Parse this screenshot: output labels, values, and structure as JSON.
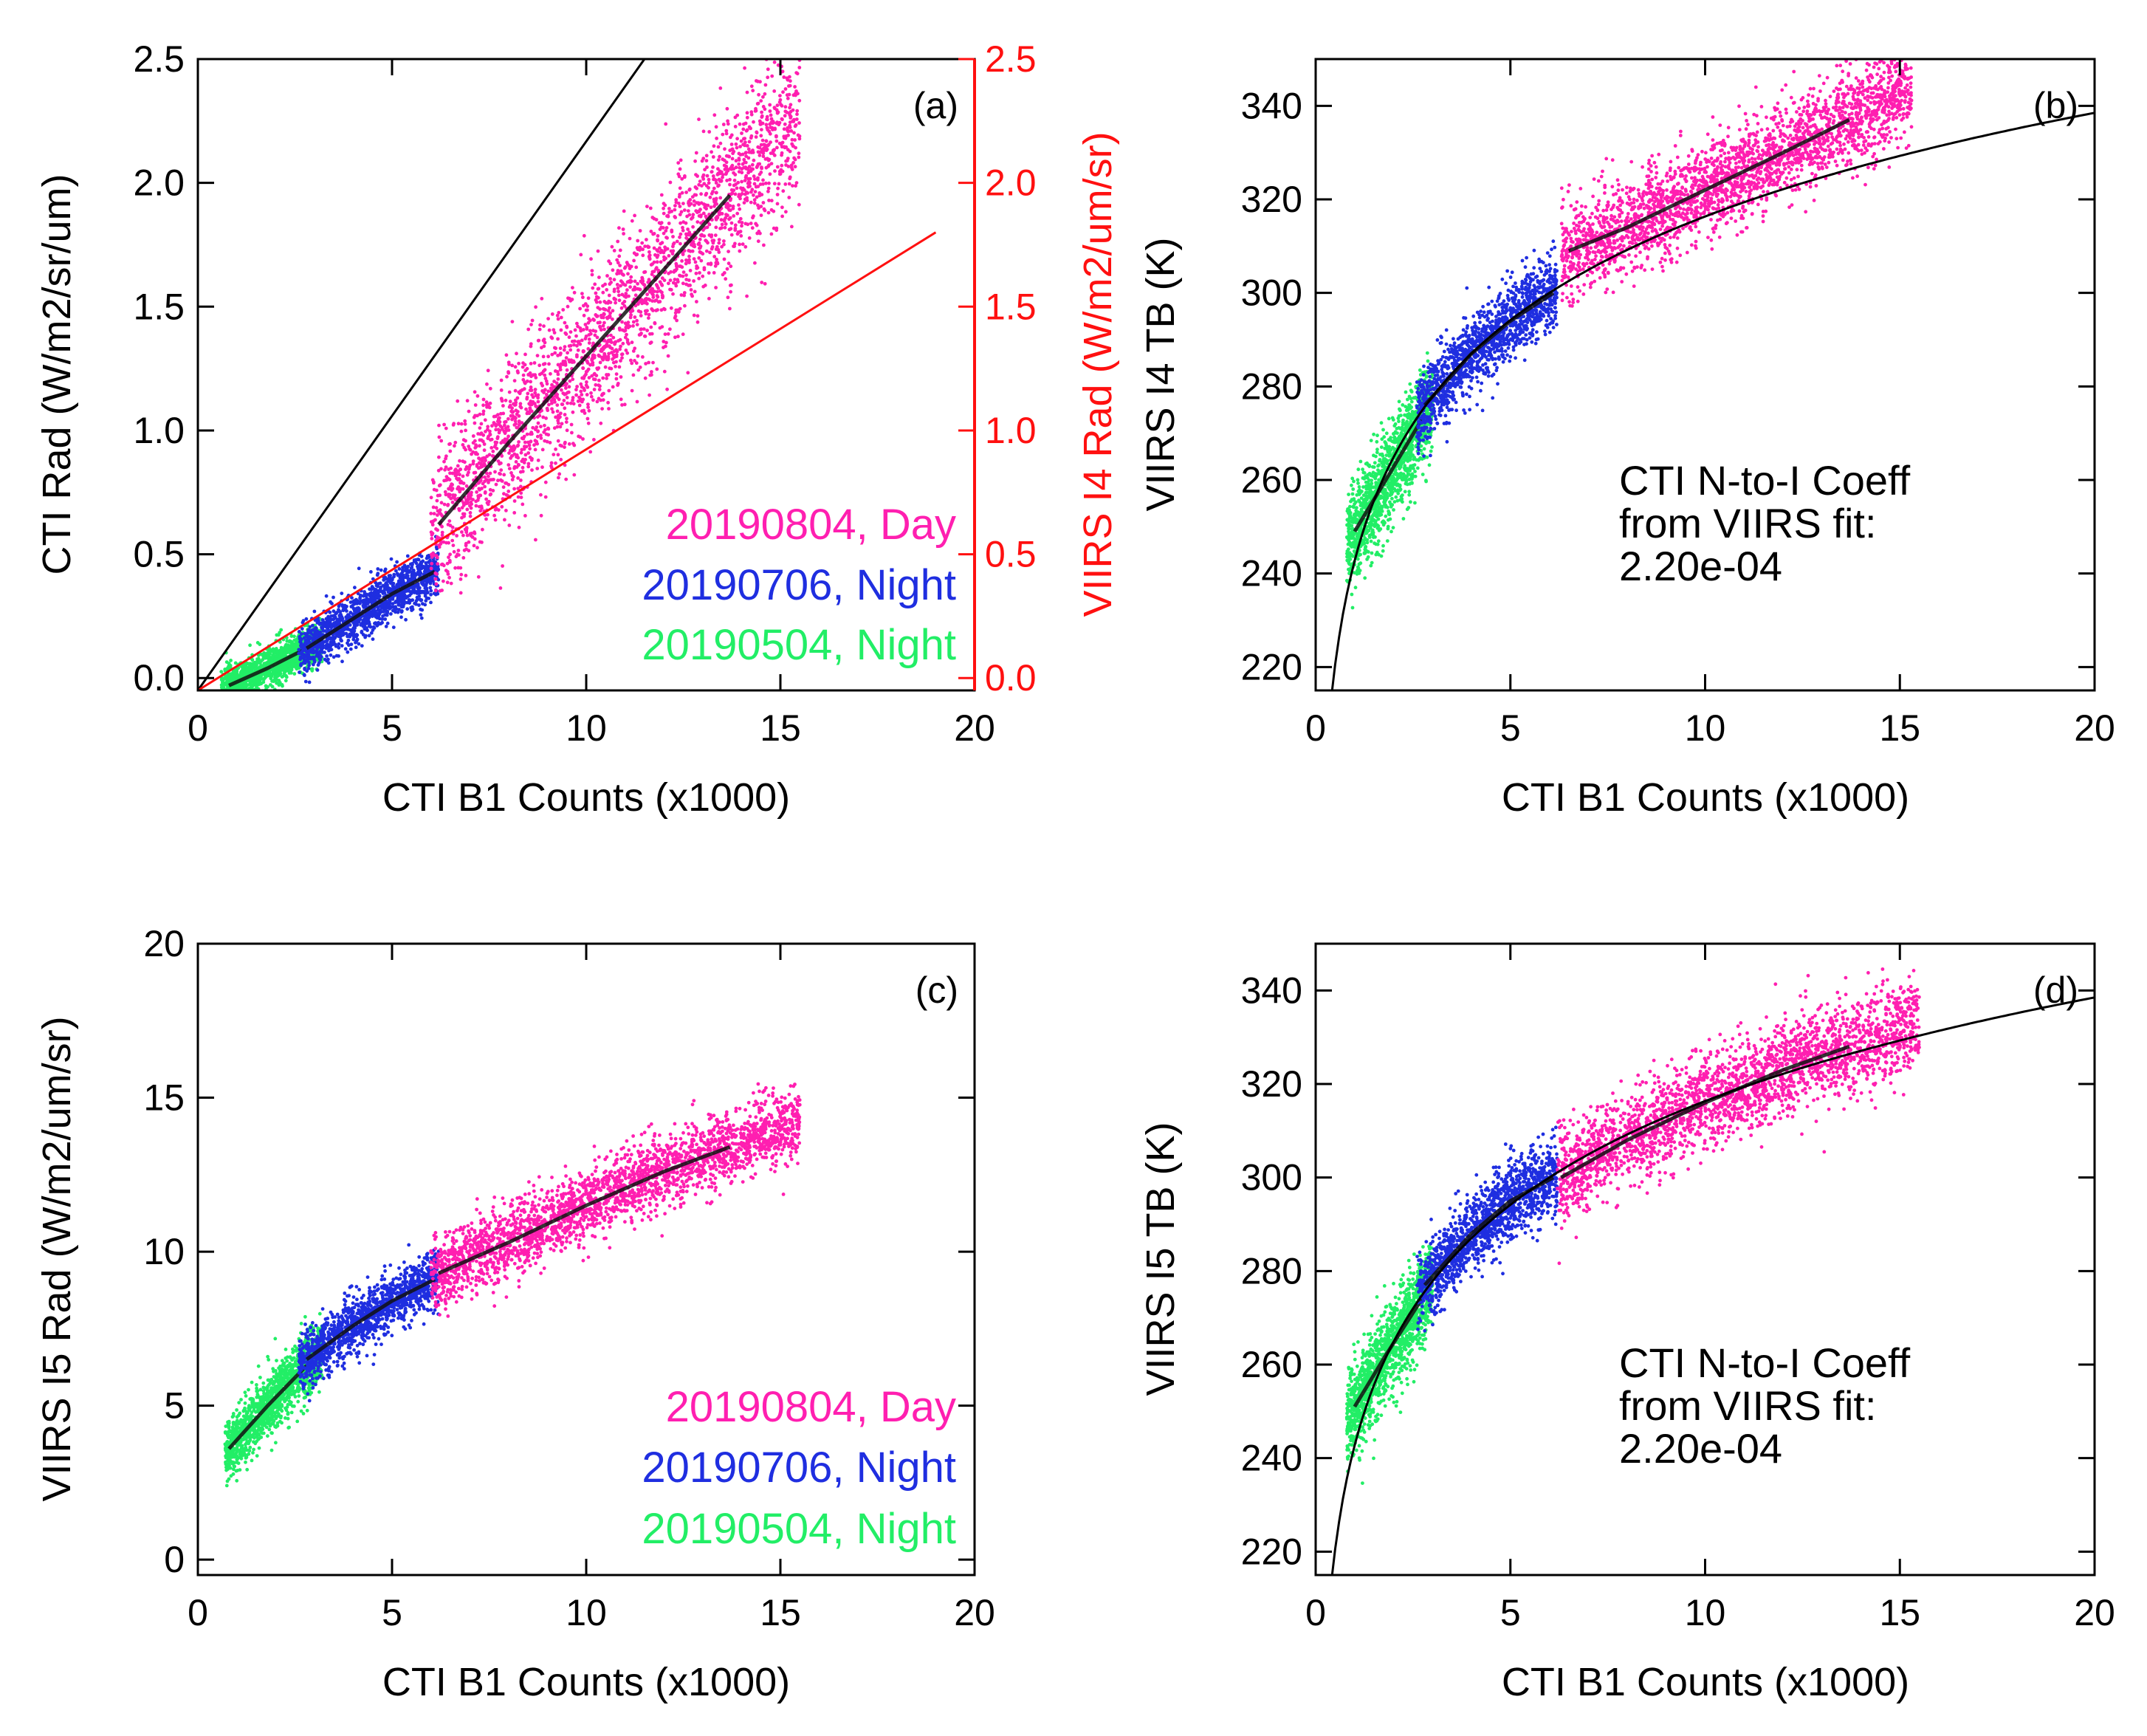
{
  "colors": {
    "day": "#ff1fb0",
    "night_0706": "#1f2ee0",
    "night_0504": "#22ee66",
    "axis": "#000000",
    "secondary_axis": "#ff1010",
    "fit_line": "#000000",
    "viirs_line": "#ff1010"
  },
  "chart_data": [
    {
      "panel": "(a)",
      "type": "scatter",
      "xlabel": "CTI B1 Counts (x1000)",
      "ylabel": "CTI Rad (W/m2/sr/um)",
      "y2label": "VIIRS I4 Rad (W/m2/um/sr)",
      "xlim": [
        0,
        20
      ],
      "ylim": [
        -0.05,
        2.5
      ],
      "y2lim": [
        -0.05,
        2.5
      ],
      "xticks": [
        "0",
        "5",
        "10",
        "15",
        "20"
      ],
      "yticks": [
        "0.0",
        "0.5",
        "1.0",
        "1.5",
        "2.0",
        "2.5"
      ],
      "y2ticks": [
        "0.0",
        "0.5",
        "1.0",
        "1.5",
        "2.0",
        "2.5"
      ],
      "legend": [
        "20190804, Day",
        "20190706, Night",
        "20190504, Night"
      ],
      "legend_placement": "bottom-right",
      "series": [
        {
          "name": "20190804, Day",
          "color_key": "day",
          "x_range": [
            6.0,
            15.5
          ],
          "trend": [
            [
              6.2,
              0.62
            ],
            [
              8,
              0.95
            ],
            [
              10,
              1.3
            ],
            [
              12,
              1.65
            ],
            [
              13.7,
              1.95
            ]
          ],
          "spread": 0.16
        },
        {
          "name": "20190706, Night",
          "color_key": "night_0706",
          "x_range": [
            2.6,
            6.2
          ],
          "trend": [
            [
              2.8,
              0.12
            ],
            [
              4,
              0.24
            ],
            [
              5,
              0.34
            ],
            [
              6.1,
              0.43
            ]
          ],
          "spread": 0.05
        },
        {
          "name": "20190504, Night",
          "color_key": "night_0504",
          "x_range": [
            0.6,
            3.2
          ],
          "trend": [
            [
              0.8,
              -0.03
            ],
            [
              1.8,
              0.04
            ],
            [
              2.8,
              0.12
            ]
          ],
          "spread": 0.04
        }
      ],
      "lines": [
        {
          "color_key": "fit_line",
          "points": [
            [
              0,
              -0.05
            ],
            [
              11.5,
              2.5
            ]
          ]
        },
        {
          "color_key": "viirs_line",
          "points": [
            [
              0,
              -0.05
            ],
            [
              19,
              1.8
            ]
          ]
        }
      ]
    },
    {
      "panel": "(b)",
      "type": "scatter",
      "xlabel": "CTI B1 Counts (x1000)",
      "ylabel": "VIIRS I4 TB (K)",
      "xlim": [
        0,
        20
      ],
      "ylim": [
        215,
        350
      ],
      "xticks": [
        "0",
        "5",
        "10",
        "15",
        "20"
      ],
      "yticks": [
        "220",
        "240",
        "260",
        "280",
        "300",
        "320",
        "340"
      ],
      "annotation": [
        "CTI N-to-I Coeff",
        "from VIIRS fit:",
        "2.20e-04"
      ],
      "series": [
        {
          "name": "20190804, Day",
          "color_key": "day",
          "x_range": [
            6.3,
            15.3
          ],
          "trend": [
            [
              6.5,
              309
            ],
            [
              8,
              314
            ],
            [
              10,
              322
            ],
            [
              12,
              330
            ],
            [
              13.7,
              337
            ]
          ],
          "spread": 5
        },
        {
          "name": "20190706, Night",
          "color_key": "night_0706",
          "x_range": [
            2.6,
            6.2
          ],
          "trend": [
            [
              2.8,
              276
            ],
            [
              4,
              287
            ],
            [
              5,
              294
            ],
            [
              6.1,
              300
            ]
          ],
          "spread": 4
        },
        {
          "name": "20190504, Night",
          "color_key": "night_0504",
          "x_range": [
            0.8,
            3.0
          ],
          "trend": [
            [
              1.0,
              249
            ],
            [
              1.8,
              260
            ],
            [
              2.8,
              274
            ]
          ],
          "spread": 5
        }
      ],
      "curve": {
        "color_key": "fit_line",
        "type": "log_fit",
        "x_range": [
          0.2,
          20
        ],
        "anchor": [
          [
            6,
            300
          ],
          [
            20,
            338.5
          ]
        ]
      }
    },
    {
      "panel": "(c)",
      "type": "scatter",
      "xlabel": "CTI B1 Counts (x1000)",
      "ylabel": "VIIRS I5 Rad (W/m2/um/sr)",
      "xlim": [
        0,
        20
      ],
      "ylim": [
        -0.5,
        20
      ],
      "xticks": [
        "0",
        "5",
        "10",
        "15",
        "20"
      ],
      "yticks": [
        "0",
        "5",
        "10",
        "15",
        "20"
      ],
      "legend": [
        "20190804, Day",
        "20190706, Night",
        "20190504, Night"
      ],
      "legend_placement": "bottom-right",
      "series": [
        {
          "name": "20190804, Day",
          "color_key": "day",
          "x_range": [
            6.0,
            15.5
          ],
          "trend": [
            [
              6.2,
              9.3
            ],
            [
              8,
              10.3
            ],
            [
              10,
              11.5
            ],
            [
              12,
              12.6
            ],
            [
              13.7,
              13.4
            ]
          ],
          "spread": 0.6
        },
        {
          "name": "20190706, Night",
          "color_key": "night_0706",
          "x_range": [
            2.6,
            6.2
          ],
          "trend": [
            [
              2.8,
              6.5
            ],
            [
              4,
              7.6
            ],
            [
              5,
              8.4
            ],
            [
              6.1,
              9.1
            ]
          ],
          "spread": 0.45
        },
        {
          "name": "20190504, Night",
          "color_key": "night_0504",
          "x_range": [
            0.7,
            3.2
          ],
          "trend": [
            [
              0.8,
              3.6
            ],
            [
              1.8,
              5.0
            ],
            [
              2.8,
              6.3
            ]
          ],
          "spread": 0.5
        }
      ]
    },
    {
      "panel": "(d)",
      "type": "scatter",
      "xlabel": "CTI B1 Counts (x1000)",
      "ylabel": "VIIRS I5 TB (K)",
      "xlim": [
        0,
        20
      ],
      "ylim": [
        215,
        350
      ],
      "xticks": [
        "0",
        "5",
        "10",
        "15",
        "20"
      ],
      "yticks": [
        "220",
        "240",
        "260",
        "280",
        "300",
        "320",
        "340"
      ],
      "annotation": [
        "CTI N-to-I Coeff",
        "from VIIRS fit:",
        "2.20e-04"
      ],
      "series": [
        {
          "name": "20190804, Day",
          "color_key": "day",
          "x_range": [
            6.2,
            15.5
          ],
          "trend": [
            [
              6.3,
              300
            ],
            [
              8,
              308
            ],
            [
              10,
              316
            ],
            [
              12,
              323
            ],
            [
              13.7,
              328
            ]
          ],
          "spread": 5
        },
        {
          "name": "20190706, Night",
          "color_key": "night_0706",
          "x_range": [
            2.6,
            6.2
          ],
          "trend": [
            [
              2.8,
              277
            ],
            [
              4,
              288
            ],
            [
              5,
              295
            ],
            [
              6.1,
              300
            ]
          ],
          "spread": 4
        },
        {
          "name": "20190504, Night",
          "color_key": "night_0504",
          "x_range": [
            0.8,
            3.0
          ],
          "trend": [
            [
              1.0,
              251
            ],
            [
              1.8,
              262
            ],
            [
              2.8,
              275
            ]
          ],
          "spread": 5
        }
      ],
      "curve": {
        "color_key": "fit_line",
        "type": "log_fit",
        "x_range": [
          0.2,
          20
        ],
        "anchor": [
          [
            6,
            300
          ],
          [
            20,
            338.5
          ]
        ]
      }
    }
  ]
}
